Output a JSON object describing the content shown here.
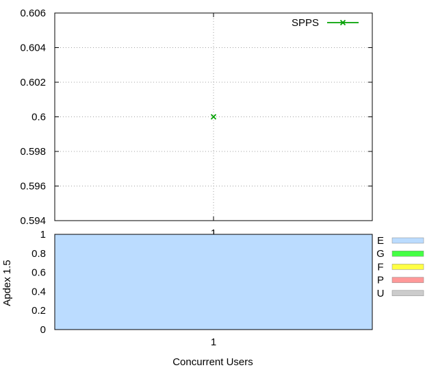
{
  "chart_data": [
    {
      "type": "line",
      "x": [
        "1"
      ],
      "series": [
        {
          "name": "SPPS",
          "values": [
            0.6
          ],
          "color": "#00a000"
        }
      ],
      "ylim": [
        0.594,
        0.606
      ],
      "yticks": [
        "0.594",
        "0.596",
        "0.598",
        "0.6",
        "0.602",
        "0.604",
        "0.606"
      ],
      "xticks": [
        "1"
      ],
      "grid": true,
      "legend_position": "top-right"
    },
    {
      "type": "bar",
      "stacked": true,
      "categories": [
        "1"
      ],
      "series": [
        {
          "name": "E",
          "values": [
            1.0
          ],
          "color": "#bbdcff"
        },
        {
          "name": "G",
          "values": [
            0
          ],
          "color": "#44ff44"
        },
        {
          "name": "F",
          "values": [
            0
          ],
          "color": "#ffff44"
        },
        {
          "name": "P",
          "values": [
            0
          ],
          "color": "#ff9999"
        },
        {
          "name": "U",
          "values": [
            0
          ],
          "color": "#cccccc"
        }
      ],
      "ylabel": "Apdex 1.5",
      "xlabel": "Concurrent Users",
      "ylim": [
        0,
        1
      ],
      "yticks": [
        "0",
        "0.2",
        "0.4",
        "0.6",
        "0.8",
        "1"
      ],
      "xticks": [
        "1"
      ],
      "legend_position": "right"
    }
  ]
}
